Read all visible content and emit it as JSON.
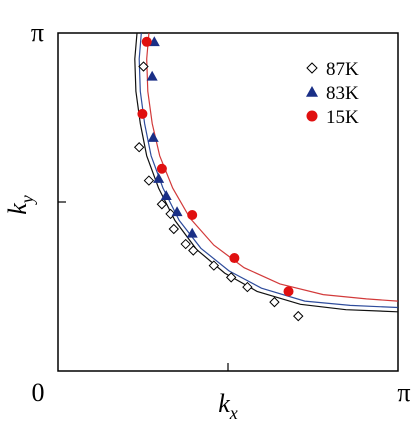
{
  "chart_data": {
    "type": "scatter",
    "title": "",
    "xlabel": "k",
    "xlabel_sub": "x",
    "ylabel": "k",
    "ylabel_sub": "y",
    "xlim": [
      0,
      3.14159
    ],
    "ylim": [
      0,
      3.14159
    ],
    "x_ticks": [
      {
        "value": 0,
        "label": "0"
      },
      {
        "value": 1.5708,
        "label": ""
      },
      {
        "value": 3.14159,
        "label": "π"
      }
    ],
    "y_ticks": [
      {
        "value": 1.5708,
        "label": ""
      },
      {
        "value": 3.14159,
        "label": "π"
      }
    ],
    "grid": false,
    "legend_position": "top-right",
    "series": [
      {
        "name": "87K",
        "marker": "diamond-open",
        "color": "#000000",
        "points": [
          [
            0.79,
            2.83
          ],
          [
            0.75,
            2.08
          ],
          [
            0.84,
            1.77
          ],
          [
            0.96,
            1.55
          ],
          [
            1.04,
            1.46
          ],
          [
            1.07,
            1.32
          ],
          [
            1.18,
            1.18
          ],
          [
            1.25,
            1.12
          ],
          [
            1.44,
            0.98
          ],
          [
            1.6,
            0.87
          ],
          [
            1.75,
            0.78
          ],
          [
            2.0,
            0.64
          ],
          [
            2.22,
            0.51
          ]
        ]
      },
      {
        "name": "83K",
        "marker": "triangle-filled",
        "color": "#1a2f86",
        "points": [
          [
            0.89,
            3.06
          ],
          [
            0.87,
            2.74
          ],
          [
            0.88,
            2.17
          ],
          [
            0.93,
            1.79
          ],
          [
            1.0,
            1.63
          ],
          [
            1.1,
            1.48
          ],
          [
            1.24,
            1.28
          ]
        ]
      },
      {
        "name": "15K",
        "marker": "circle-filled",
        "color": "#e01010",
        "points": [
          [
            0.82,
            3.06
          ],
          [
            0.78,
            2.39
          ],
          [
            0.96,
            1.88
          ],
          [
            1.24,
            1.45
          ],
          [
            1.63,
            1.05
          ],
          [
            2.13,
            0.74
          ]
        ]
      }
    ],
    "curves": [
      {
        "color": "#d23a3a",
        "points": [
          [
            0.84,
            3.14
          ],
          [
            0.82,
            2.9
          ],
          [
            0.83,
            2.6
          ],
          [
            0.87,
            2.3
          ],
          [
            0.94,
            2.0
          ],
          [
            1.06,
            1.7
          ],
          [
            1.22,
            1.42
          ],
          [
            1.44,
            1.17
          ],
          [
            1.72,
            0.96
          ],
          [
            2.05,
            0.81
          ],
          [
            2.45,
            0.71
          ],
          [
            2.85,
            0.67
          ],
          [
            3.14,
            0.65
          ]
        ]
      },
      {
        "color": "#2e4c9c",
        "points": [
          [
            0.77,
            3.14
          ],
          [
            0.75,
            2.9
          ],
          [
            0.76,
            2.6
          ],
          [
            0.8,
            2.3
          ],
          [
            0.86,
            2.0
          ],
          [
            0.97,
            1.7
          ],
          [
            1.12,
            1.4
          ],
          [
            1.32,
            1.14
          ],
          [
            1.58,
            0.93
          ],
          [
            1.88,
            0.77
          ],
          [
            2.28,
            0.65
          ],
          [
            2.7,
            0.61
          ],
          [
            3.14,
            0.59
          ]
        ]
      },
      {
        "color": "#111111",
        "points": [
          [
            0.73,
            3.14
          ],
          [
            0.71,
            2.9
          ],
          [
            0.72,
            2.6
          ],
          [
            0.76,
            2.3
          ],
          [
            0.82,
            2.0
          ],
          [
            0.93,
            1.7
          ],
          [
            1.08,
            1.4
          ],
          [
            1.28,
            1.13
          ],
          [
            1.54,
            0.91
          ],
          [
            1.84,
            0.74
          ],
          [
            2.24,
            0.62
          ],
          [
            2.66,
            0.57
          ],
          [
            3.14,
            0.55
          ]
        ]
      }
    ]
  }
}
